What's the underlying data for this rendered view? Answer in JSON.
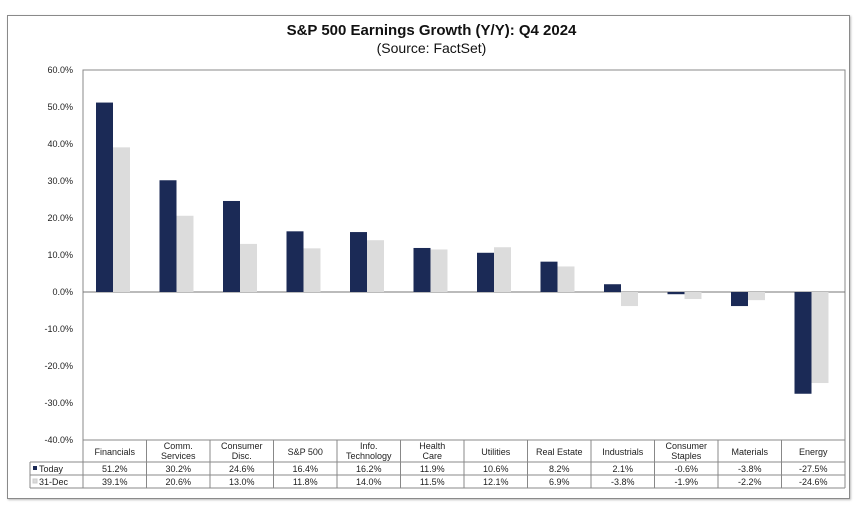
{
  "chart_data": {
    "type": "bar",
    "title": "S&P 500 Earnings Growth (Y/Y): Q4 2024",
    "subtitle": "(Source: FactSet)",
    "xlabel": "",
    "ylabel": "",
    "ylim": [
      -40,
      60
    ],
    "yticks": [
      "60.0%",
      "50.0%",
      "40.0%",
      "30.0%",
      "20.0%",
      "10.0%",
      "0.0%",
      "-10.0%",
      "-20.0%",
      "-30.0%",
      "-40.0%"
    ],
    "categories": [
      [
        "Financials"
      ],
      [
        "Comm.",
        "Services"
      ],
      [
        "Consumer",
        "Disc."
      ],
      [
        "S&P 500"
      ],
      [
        "Info.",
        "Technology"
      ],
      [
        "Health",
        "Care"
      ],
      [
        "Utilities"
      ],
      [
        "Real Estate"
      ],
      [
        "Industrials"
      ],
      [
        "Consumer",
        "Staples"
      ],
      [
        "Materials"
      ],
      [
        "Energy"
      ]
    ],
    "series": [
      {
        "name": "Today",
        "color": "#1b2a56",
        "values": [
          51.2,
          30.2,
          24.6,
          16.4,
          16.2,
          11.9,
          10.6,
          8.2,
          2.1,
          -0.6,
          -3.8,
          -27.5
        ],
        "labels": [
          "51.2%",
          "30.2%",
          "24.6%",
          "16.4%",
          "16.2%",
          "11.9%",
          "10.6%",
          "8.2%",
          "2.1%",
          "-0.6%",
          "-3.8%",
          "-27.5%"
        ]
      },
      {
        "name": "31-Dec",
        "color": "#dcdcdc",
        "values": [
          39.1,
          20.6,
          13.0,
          11.8,
          14.0,
          11.5,
          12.1,
          6.9,
          -3.8,
          -1.9,
          -2.2,
          -24.6
        ],
        "labels": [
          "39.1%",
          "20.6%",
          "13.0%",
          "11.8%",
          "14.0%",
          "11.5%",
          "12.1%",
          "6.9%",
          "-3.8%",
          "-1.9%",
          "-2.2%",
          "-24.6%"
        ]
      }
    ],
    "legend": "data-table-bottom",
    "grid": false
  }
}
